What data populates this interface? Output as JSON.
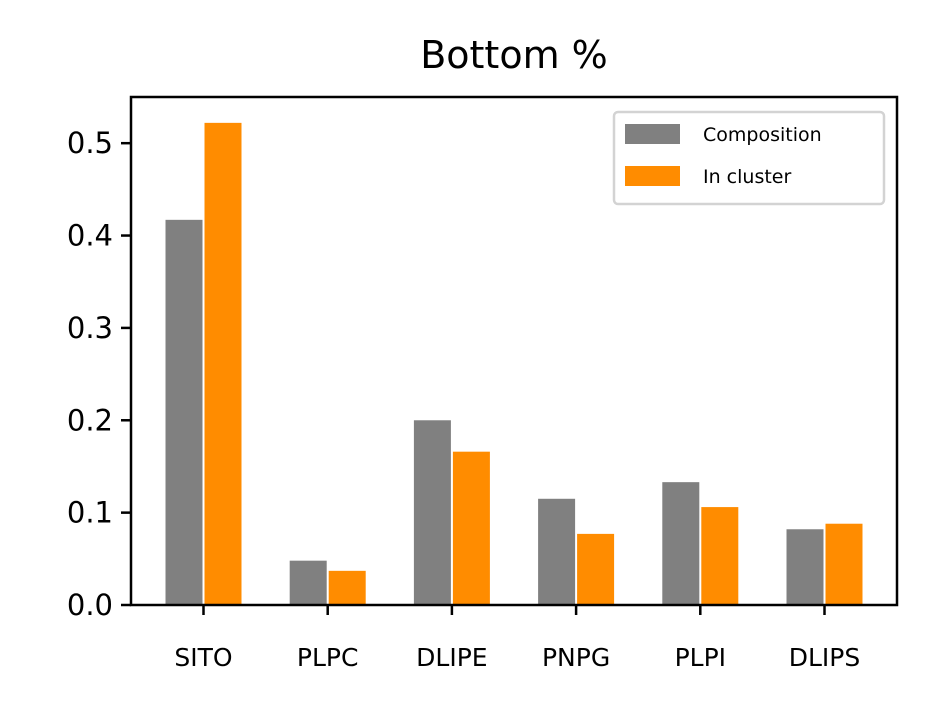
{
  "chart_data": {
    "type": "bar",
    "title": "Bottom %",
    "xlabel": "",
    "ylabel": "",
    "categories": [
      "SITO",
      "PLPC",
      "DLIPE",
      "PNPG",
      "PLPI",
      "DLIPS"
    ],
    "series": [
      {
        "name": "Composition",
        "color": "#808080",
        "values": [
          0.417,
          0.048,
          0.2,
          0.115,
          0.133,
          0.082
        ]
      },
      {
        "name": "In cluster",
        "color": "#ff8c00",
        "values": [
          0.522,
          0.037,
          0.166,
          0.077,
          0.106,
          0.088
        ]
      }
    ],
    "ylim": [
      0,
      0.55
    ],
    "yticks": [
      "0.0",
      "0.1",
      "0.2",
      "0.3",
      "0.4",
      "0.5"
    ],
    "grid": false,
    "legend_position": "top-right"
  }
}
